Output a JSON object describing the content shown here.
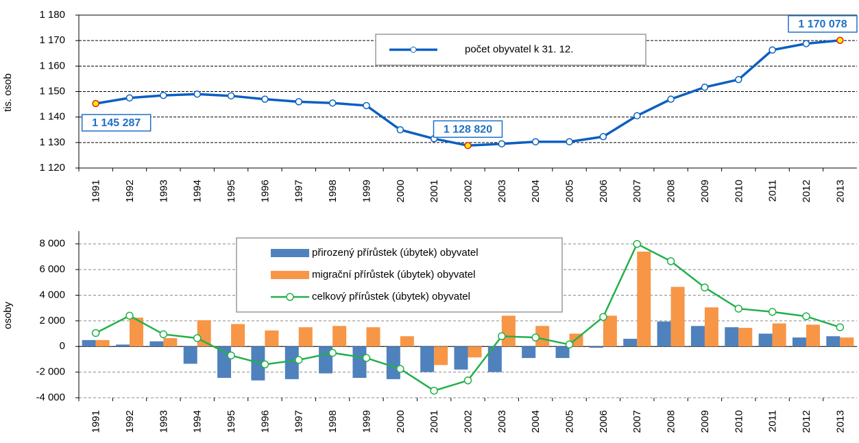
{
  "chart_data": [
    {
      "type": "line",
      "y_label": "tis. osob",
      "categories": [
        "1991",
        "1992",
        "1993",
        "1994",
        "1995",
        "1996",
        "1997",
        "1998",
        "1999",
        "2000",
        "2001",
        "2002",
        "2003",
        "2004",
        "2005",
        "2006",
        "2007",
        "2008",
        "2009",
        "2010",
        "2011",
        "2012",
        "2013"
      ],
      "series": [
        {
          "name": "počet obyvatel k 31. 12.",
          "color": "#0b5fc1",
          "values": [
            1145.287,
            1147.5,
            1148.5,
            1149,
            1148.3,
            1147,
            1146,
            1145.5,
            1144.5,
            1135,
            1131.5,
            1128.82,
            1129.5,
            1130.3,
            1130.3,
            1132.3,
            1140.5,
            1147,
            1151.7,
            1154.7,
            1166.3,
            1168.8,
            1170.078
          ],
          "value_labels": [
            "1 145 287",
            null,
            null,
            null,
            null,
            null,
            null,
            null,
            null,
            null,
            null,
            "1 128 820",
            null,
            null,
            null,
            null,
            null,
            null,
            null,
            null,
            null,
            null,
            "1 170 078"
          ]
        }
      ],
      "ylim": [
        1120,
        1180
      ],
      "yticks": [
        {
          "value": 1120,
          "label": "1 120"
        },
        {
          "value": 1130,
          "label": "1 130"
        },
        {
          "value": 1140,
          "label": "1 140"
        },
        {
          "value": 1150,
          "label": "1 150"
        },
        {
          "value": 1160,
          "label": "1 160"
        },
        {
          "value": 1170,
          "label": "1 170"
        },
        {
          "value": 1180,
          "label": "1 180"
        }
      ],
      "grid": true
    },
    {
      "type": "bar",
      "y_label": "osoby",
      "categories": [
        "1991",
        "1992",
        "1993",
        "1994",
        "1995",
        "1996",
        "1997",
        "1998",
        "1999",
        "2000",
        "2001",
        "2002",
        "2003",
        "2004",
        "2005",
        "2006",
        "2007",
        "2008",
        "2009",
        "2010",
        "2011",
        "2012",
        "2013"
      ],
      "series": [
        {
          "name": "přirozený přírůstek (úbytek) obyvatel",
          "type": "bar",
          "color": "#4f81bd",
          "values": [
            500,
            150,
            400,
            -1350,
            -2450,
            -2650,
            -2550,
            -2100,
            -2450,
            -2550,
            -2000,
            -1800,
            -2000,
            -900,
            -900,
            -100,
            600,
            1950,
            1600,
            1500,
            1000,
            700,
            800
          ]
        },
        {
          "name": "migrační přírůstek (úbytek) obyvatel",
          "type": "bar",
          "color": "#f79646",
          "values": [
            500,
            2250,
            650,
            2050,
            1750,
            1250,
            1500,
            1600,
            1500,
            800,
            -1450,
            -850,
            2400,
            1600,
            1000,
            2400,
            7400,
            4650,
            3050,
            1450,
            1800,
            1700,
            700
          ]
        },
        {
          "name": "celkový přírůstek (úbytek) obyvatel",
          "type": "line",
          "color": "#22b04b",
          "values": [
            1050,
            2400,
            950,
            650,
            -700,
            -1400,
            -1050,
            -500,
            -900,
            -1750,
            -3450,
            -2650,
            800,
            700,
            150,
            2300,
            8000,
            6650,
            4600,
            2950,
            2700,
            2350,
            1500
          ]
        }
      ],
      "ylim": [
        -4000,
        9000
      ],
      "yticks": [
        {
          "value": -4000,
          "label": "-4 000"
        },
        {
          "value": -2000,
          "label": "-2 000"
        },
        0,
        {
          "value": 2000,
          "label": "2 000"
        },
        {
          "value": 4000,
          "label": "4 000"
        },
        {
          "value": 6000,
          "label": "6 000"
        },
        {
          "value": 8000,
          "label": "8 000"
        }
      ],
      "grid": true
    }
  ]
}
